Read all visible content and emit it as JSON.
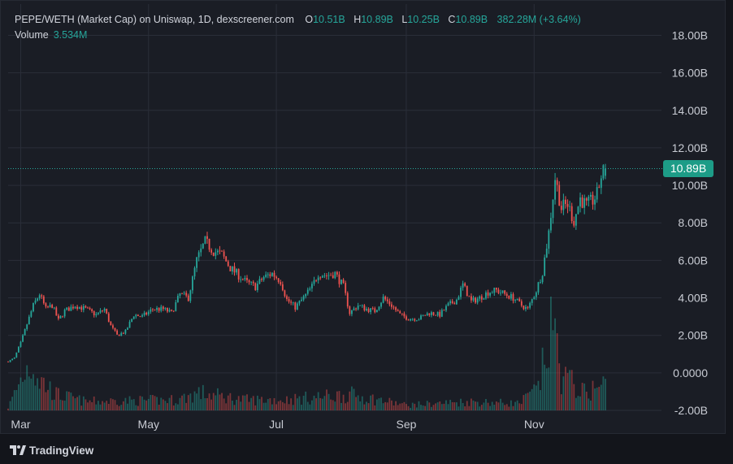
{
  "header": {
    "title": "PEPE/WETH (Market Cap) on Uniswap, 1D, dexscreener.com",
    "ohlc": [
      {
        "key": "O",
        "value": "10.51B"
      },
      {
        "key": "H",
        "value": "10.89B"
      },
      {
        "key": "L",
        "value": "10.25B"
      },
      {
        "key": "C",
        "value": "10.89B"
      }
    ],
    "change": "382.28M (+3.64%)"
  },
  "volume": {
    "label": "Volume",
    "value": "3.534M"
  },
  "last_price_label": "10.89B",
  "footer": {
    "brand": "TradingView"
  },
  "colors": {
    "up": "#26a69a",
    "down": "#ef5350",
    "background": "#1a1d25",
    "grid": "#2a2e39",
    "text": "#c8cbd3"
  },
  "chart_data": {
    "type": "candlestick",
    "series_name": "PEPE/WETH (Market Cap)",
    "x_range": [
      "2024-02-24",
      "2024-12-31"
    ],
    "x_ticks": [
      {
        "date": "2024-03-01",
        "label": "Mar"
      },
      {
        "date": "2024-05-01",
        "label": "May"
      },
      {
        "date": "2024-07-01",
        "label": "Jul"
      },
      {
        "date": "2024-09-01",
        "label": "Sep"
      },
      {
        "date": "2024-11-01",
        "label": "Nov"
      }
    ],
    "y_unit": "billions USD",
    "ylim": [
      -2.0,
      18.8
    ],
    "y_ticks": [
      {
        "value": 18,
        "label": "18.00B"
      },
      {
        "value": 16,
        "label": "16.00B"
      },
      {
        "value": 14,
        "label": "14.00B"
      },
      {
        "value": 12,
        "label": "12.00B"
      },
      {
        "value": 10,
        "label": "10.00B"
      },
      {
        "value": 8,
        "label": "8.00B"
      },
      {
        "value": 6,
        "label": "6.00B"
      },
      {
        "value": 4,
        "label": "4.00B"
      },
      {
        "value": 2,
        "label": "2.00B"
      },
      {
        "value": 0,
        "label": "0.0000"
      },
      {
        "value": -2,
        "label": "-2.00B"
      }
    ],
    "last_value": 10.89,
    "grid": true,
    "close_path": [
      [
        "2024-02-24",
        0.6
      ],
      [
        "2024-02-27",
        0.8
      ],
      [
        "2024-03-01",
        1.6
      ],
      [
        "2024-03-04",
        2.6
      ],
      [
        "2024-03-07",
        3.6
      ],
      [
        "2024-03-10",
        4.2
      ],
      [
        "2024-03-13",
        3.4
      ],
      [
        "2024-03-16",
        3.6
      ],
      [
        "2024-03-19",
        2.8
      ],
      [
        "2024-03-22",
        3.3
      ],
      [
        "2024-03-27",
        3.6
      ],
      [
        "2024-04-01",
        3.4
      ],
      [
        "2024-04-06",
        3.1
      ],
      [
        "2024-04-10",
        3.4
      ],
      [
        "2024-04-13",
        2.5
      ],
      [
        "2024-04-16",
        2.0
      ],
      [
        "2024-04-20",
        2.2
      ],
      [
        "2024-04-24",
        3.1
      ],
      [
        "2024-04-28",
        3.0
      ],
      [
        "2024-05-03",
        3.4
      ],
      [
        "2024-05-08",
        3.4
      ],
      [
        "2024-05-12",
        3.2
      ],
      [
        "2024-05-16",
        4.2
      ],
      [
        "2024-05-20",
        4.0
      ],
      [
        "2024-05-24",
        6.0
      ],
      [
        "2024-05-28",
        7.0
      ],
      [
        "2024-06-01",
        6.5
      ],
      [
        "2024-06-05",
        6.3
      ],
      [
        "2024-06-09",
        5.6
      ],
      [
        "2024-06-13",
        5.2
      ],
      [
        "2024-06-17",
        4.8
      ],
      [
        "2024-06-21",
        4.6
      ],
      [
        "2024-06-25",
        5.1
      ],
      [
        "2024-06-29",
        5.3
      ],
      [
        "2024-07-03",
        4.9
      ],
      [
        "2024-07-06",
        3.9
      ],
      [
        "2024-07-10",
        3.5
      ],
      [
        "2024-07-14",
        4.0
      ],
      [
        "2024-07-18",
        4.6
      ],
      [
        "2024-07-21",
        5.3
      ],
      [
        "2024-07-25",
        5.2
      ],
      [
        "2024-07-29",
        5.3
      ],
      [
        "2024-08-02",
        4.6
      ],
      [
        "2024-08-05",
        3.2
      ],
      [
        "2024-08-09",
        3.6
      ],
      [
        "2024-08-13",
        3.4
      ],
      [
        "2024-08-17",
        3.3
      ],
      [
        "2024-08-21",
        4.0
      ],
      [
        "2024-08-25",
        3.6
      ],
      [
        "2024-08-29",
        3.1
      ],
      [
        "2024-09-02",
        2.9
      ],
      [
        "2024-09-07",
        2.9
      ],
      [
        "2024-09-12",
        3.2
      ],
      [
        "2024-09-17",
        3.1
      ],
      [
        "2024-09-21",
        3.6
      ],
      [
        "2024-09-25",
        3.9
      ],
      [
        "2024-09-28",
        4.7
      ],
      [
        "2024-10-02",
        3.8
      ],
      [
        "2024-10-06",
        4.0
      ],
      [
        "2024-10-10",
        4.3
      ],
      [
        "2024-10-14",
        4.4
      ],
      [
        "2024-10-18",
        4.2
      ],
      [
        "2024-10-22",
        4.0
      ],
      [
        "2024-10-26",
        3.6
      ],
      [
        "2024-10-29",
        3.4
      ],
      [
        "2024-11-02",
        4.4
      ],
      [
        "2024-11-05",
        5.4
      ],
      [
        "2024-11-08",
        7.5
      ],
      [
        "2024-11-11",
        10.4
      ],
      [
        "2024-11-14",
        8.8
      ],
      [
        "2024-11-17",
        9.0
      ],
      [
        "2024-11-20",
        8.1
      ],
      [
        "2024-11-23",
        9.3
      ],
      [
        "2024-11-26",
        8.9
      ],
      [
        "2024-11-29",
        9.2
      ],
      [
        "2024-12-01",
        9.5
      ],
      [
        "2024-12-03",
        10.51
      ],
      [
        "2024-12-05",
        10.89
      ]
    ],
    "volume_path": [
      [
        "2024-02-24",
        0.03
      ],
      [
        "2024-03-03",
        0.45
      ],
      [
        "2024-03-06",
        0.55
      ],
      [
        "2024-03-10",
        0.35
      ],
      [
        "2024-03-18",
        0.18
      ],
      [
        "2024-04-01",
        0.1
      ],
      [
        "2024-05-15",
        0.12
      ],
      [
        "2024-05-25",
        0.2
      ],
      [
        "2024-06-15",
        0.12
      ],
      [
        "2024-07-05",
        0.12
      ],
      [
        "2024-08-05",
        0.18
      ],
      [
        "2024-09-01",
        0.06
      ],
      [
        "2024-10-01",
        0.1
      ],
      [
        "2024-10-25",
        0.08
      ],
      [
        "2024-11-03",
        0.25
      ],
      [
        "2024-11-10",
        1.0
      ],
      [
        "2024-11-14",
        0.4
      ],
      [
        "2024-11-25",
        0.2
      ],
      [
        "2024-12-05",
        0.3
      ]
    ]
  }
}
